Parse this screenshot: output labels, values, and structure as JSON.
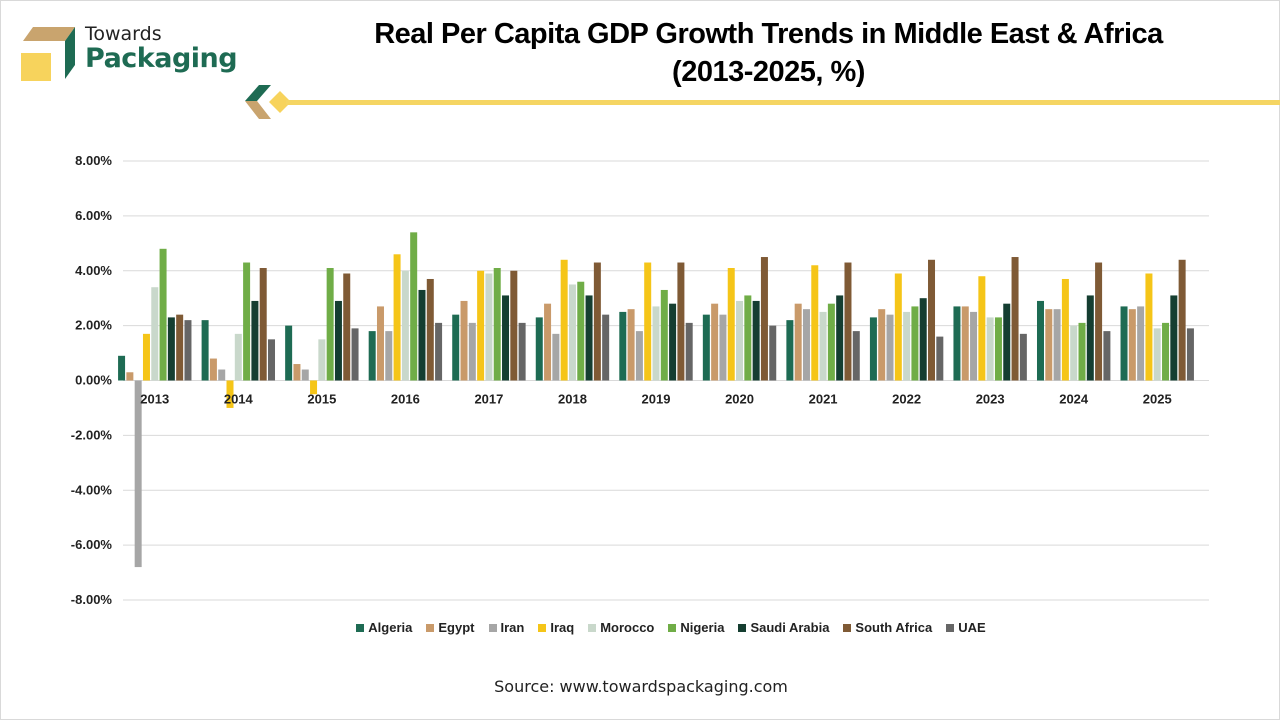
{
  "brand": {
    "line1": "Towards",
    "line2": "Packaging",
    "green": "#1e6b53",
    "tan": "#c9a46e",
    "yellow": "#f7d35c"
  },
  "title_line1": "Real Per Capita GDP Growth Trends in Middle East & Africa",
  "title_line2": "(2013-2025, %)",
  "source": "Source: www.towardspackaging.com",
  "chart_data": {
    "type": "bar",
    "title": "Real Per Capita GDP Growth Trends in Middle East & Africa (2013-2025, %)",
    "xlabel": "",
    "ylabel": "",
    "ylim": [
      -8,
      8
    ],
    "yticks": [
      8,
      6,
      4,
      2,
      0,
      -2,
      -4,
      -6,
      -8
    ],
    "ytick_labels": [
      "8.00%",
      "6.00%",
      "4.00%",
      "2.00%",
      "0.00%",
      "-2.00%",
      "-4.00%",
      "-6.00%",
      "-8.00%"
    ],
    "grid": true,
    "legend_position": "bottom",
    "categories": [
      "2013",
      "2014",
      "2015",
      "2016",
      "2017",
      "2018",
      "2019",
      "2020",
      "2021",
      "2022",
      "2023",
      "2024",
      "2025"
    ],
    "series": [
      {
        "name": "Algeria",
        "color": "#1e6b53",
        "values": [
          0.9,
          2.2,
          2.0,
          1.8,
          2.4,
          2.3,
          2.5,
          2.4,
          2.2,
          2.3,
          2.7,
          2.9,
          2.7
        ]
      },
      {
        "name": "Egypt",
        "color": "#c99a6a",
        "values": [
          0.3,
          0.8,
          0.6,
          2.7,
          2.9,
          2.8,
          2.6,
          2.8,
          2.8,
          2.6,
          2.7,
          2.6,
          2.6
        ]
      },
      {
        "name": "Iran",
        "color": "#a6a6a6",
        "values": [
          -6.8,
          0.4,
          0.4,
          1.8,
          2.1,
          1.7,
          1.8,
          2.4,
          2.6,
          2.4,
          2.5,
          2.6,
          2.7
        ]
      },
      {
        "name": "Iraq",
        "color": "#f5c518",
        "values": [
          1.7,
          -1.0,
          -0.5,
          4.6,
          4.0,
          4.4,
          4.3,
          4.1,
          4.2,
          3.9,
          3.8,
          3.7,
          3.9
        ]
      },
      {
        "name": "Morocco",
        "color": "#c9d8cb",
        "values": [
          3.4,
          1.7,
          1.5,
          4.0,
          3.9,
          3.5,
          2.7,
          2.9,
          2.5,
          2.5,
          2.3,
          2.0,
          1.9
        ]
      },
      {
        "name": "Nigeria",
        "color": "#70ad47",
        "values": [
          4.8,
          4.3,
          4.1,
          5.4,
          4.1,
          3.6,
          3.3,
          3.1,
          2.8,
          2.7,
          2.3,
          2.1,
          2.1
        ]
      },
      {
        "name": "Saudi Arabia",
        "color": "#153e31",
        "values": [
          2.3,
          2.9,
          2.9,
          3.3,
          3.1,
          3.1,
          2.8,
          2.9,
          3.1,
          3.0,
          2.8,
          3.1,
          3.1
        ]
      },
      {
        "name": "South Africa",
        "color": "#7f5a35",
        "values": [
          2.4,
          4.1,
          3.9,
          3.7,
          4.0,
          4.3,
          4.3,
          4.5,
          4.3,
          4.4,
          4.5,
          4.3,
          4.4
        ]
      },
      {
        "name": "UAE",
        "color": "#666666",
        "values": [
          2.2,
          1.5,
          1.9,
          2.1,
          2.1,
          2.4,
          2.1,
          2.0,
          1.8,
          1.6,
          1.7,
          1.8,
          1.9
        ]
      }
    ]
  }
}
